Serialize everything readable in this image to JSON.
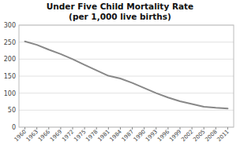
{
  "chart_data": {
    "type": "line",
    "title": "Under Five Child Mortality Rate\n(per 1,000 live births)",
    "x": [
      1960,
      1963,
      1966,
      1969,
      1972,
      1975,
      1978,
      1981,
      1984,
      1987,
      1990,
      1993,
      1996,
      1999,
      2002,
      2005,
      2008,
      2011
    ],
    "values": [
      252,
      242,
      228,
      215,
      200,
      183,
      167,
      151,
      143,
      130,
      115,
      100,
      87,
      76,
      68,
      60,
      57,
      55
    ],
    "color": "#888888",
    "xlim": [
      1958.5,
      2012.5
    ],
    "xticks": [
      1960,
      1963,
      1966,
      1969,
      1972,
      1975,
      1978,
      1981,
      1984,
      1987,
      1990,
      1993,
      1996,
      1999,
      2002,
      2005,
      2008,
      2011
    ],
    "ylim": [
      0,
      300
    ],
    "yticks": [
      0,
      50,
      100,
      150,
      200,
      250,
      300
    ],
    "grid": true
  }
}
